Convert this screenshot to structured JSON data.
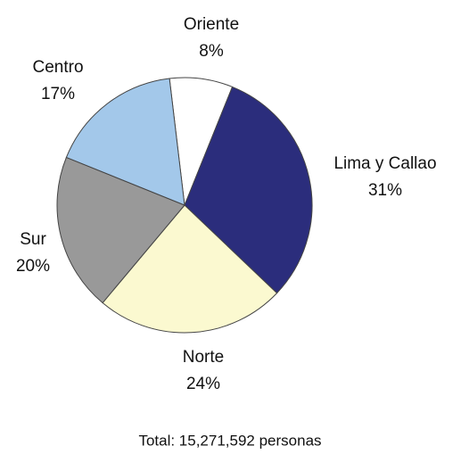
{
  "chart_data": {
    "type": "pie",
    "categories": [
      "Oriente",
      "Lima y Callao",
      "Norte",
      "Sur",
      "Centro"
    ],
    "values": [
      8,
      31,
      24,
      20,
      17
    ],
    "value_labels": [
      "8%",
      "31%",
      "24%",
      "20%",
      "17%"
    ],
    "colors": [
      "#ffffff",
      "#2b2d7c",
      "#fbf9d0",
      "#999999",
      "#a3c8ea"
    ],
    "note": "Total: 15,271,592 personas"
  }
}
